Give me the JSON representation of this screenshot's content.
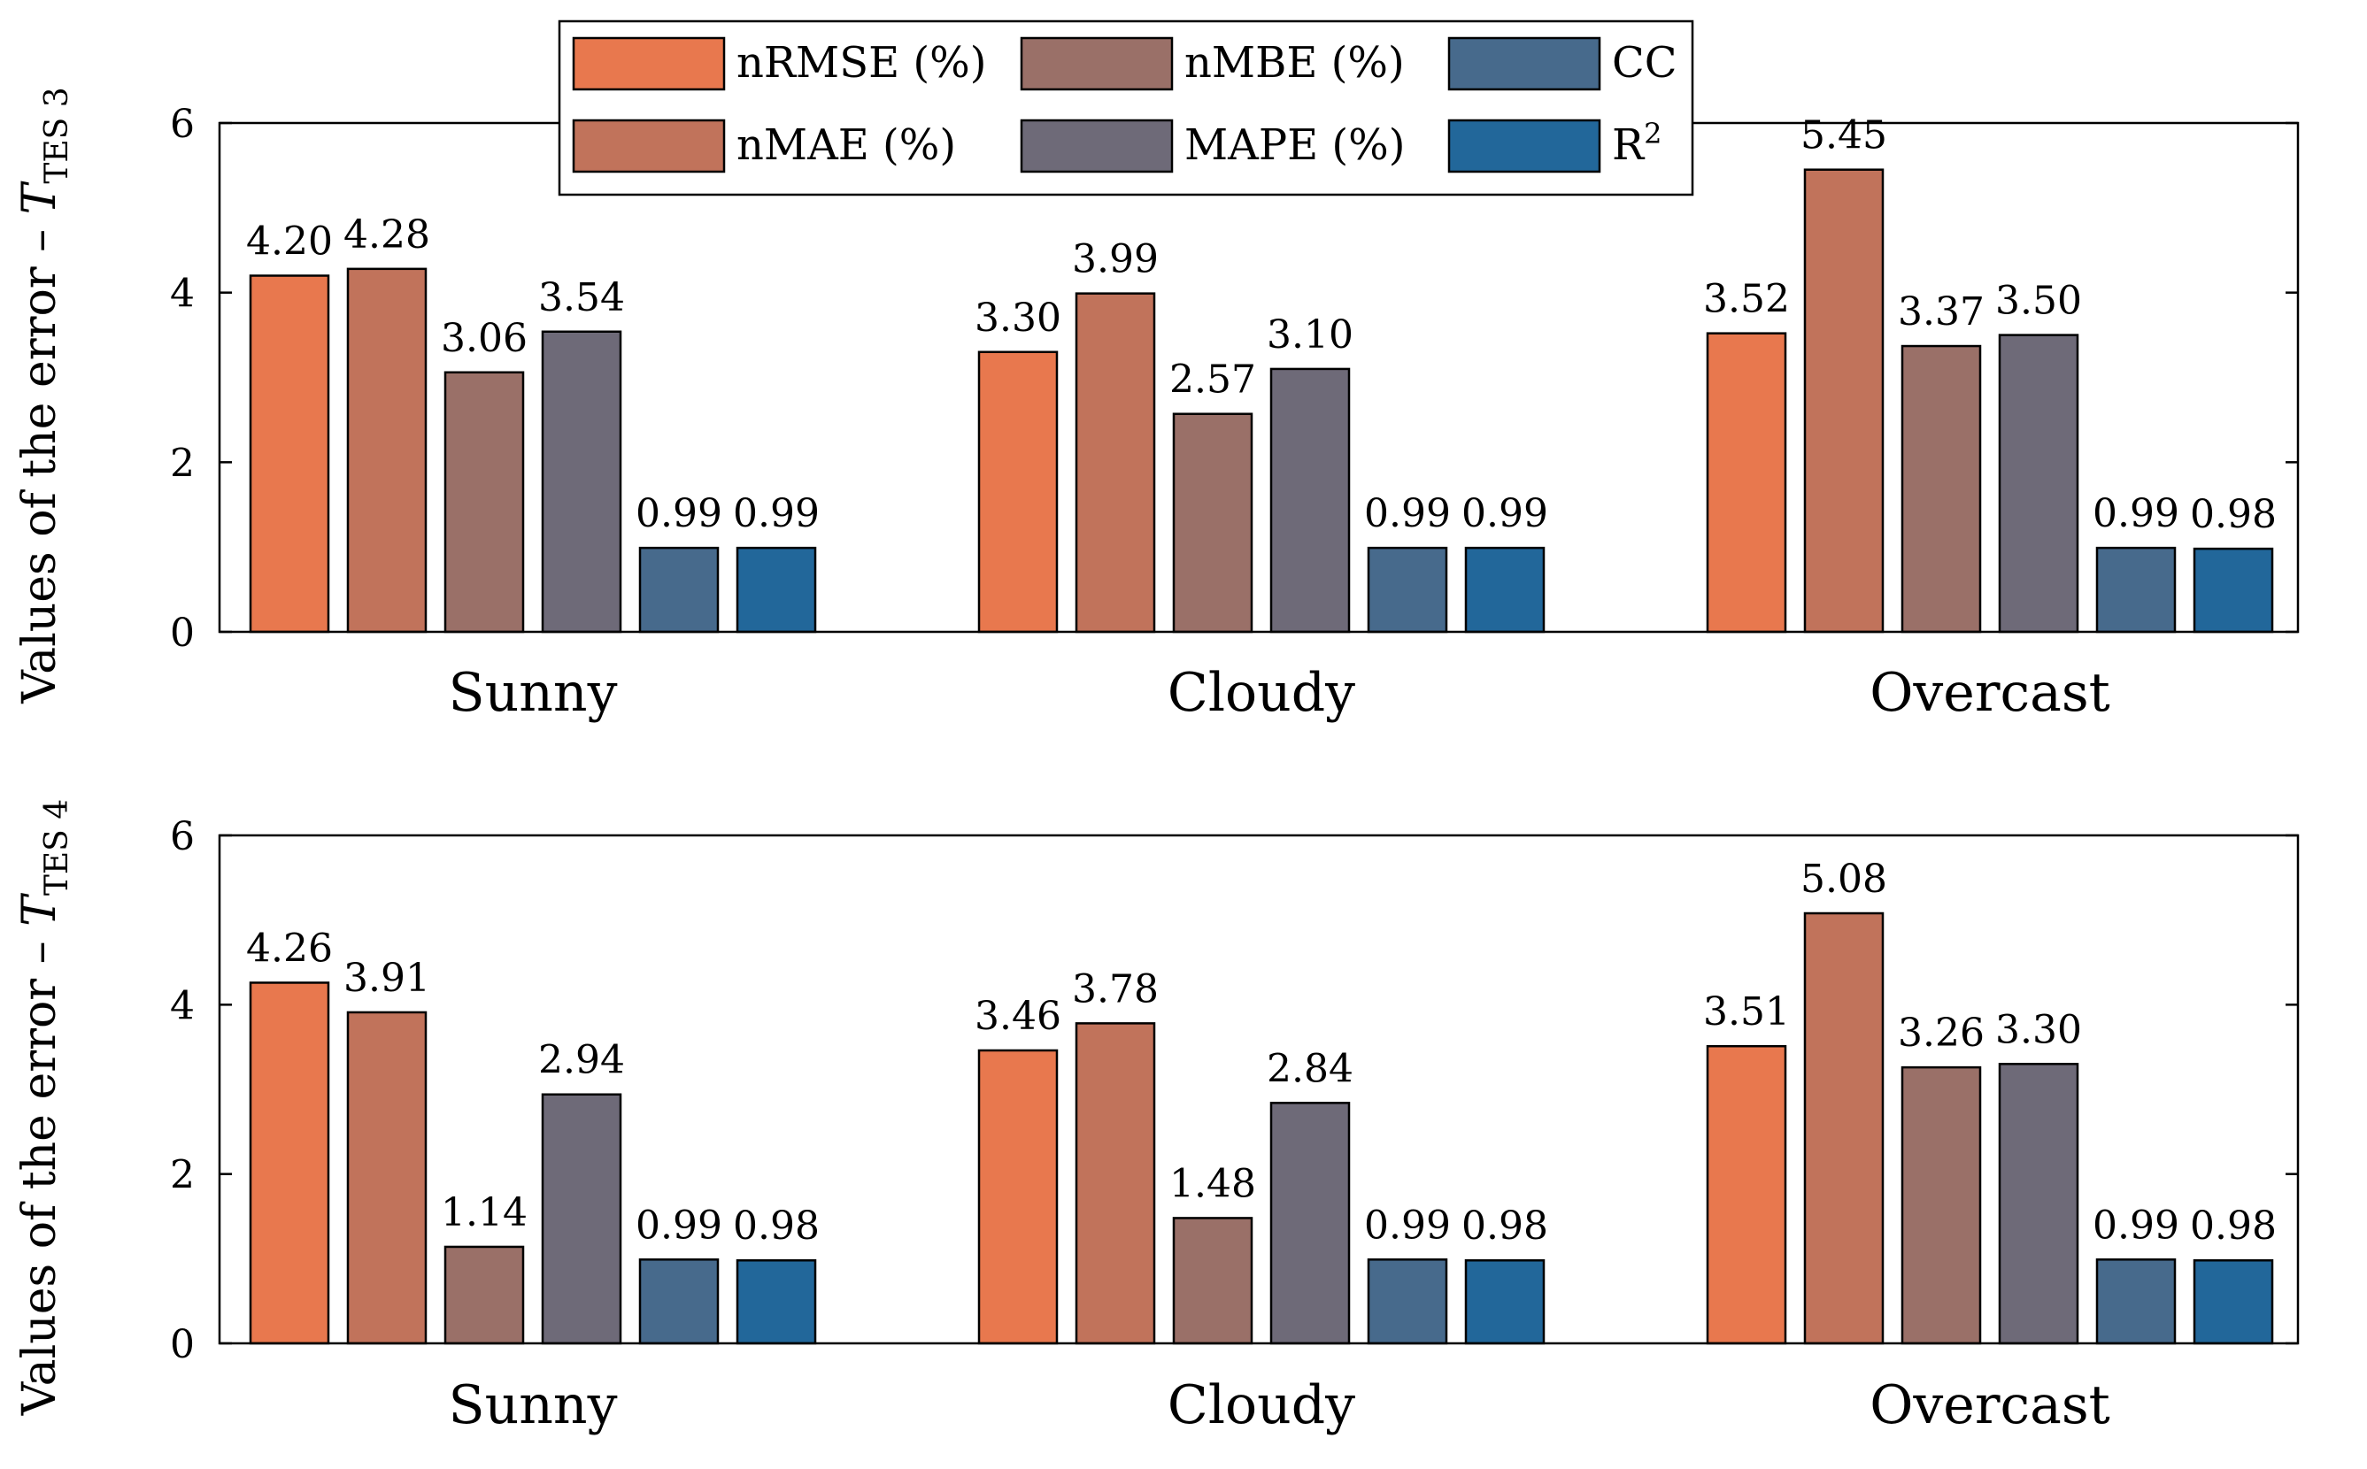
{
  "chart_data": [
    {
      "type": "bar",
      "panel": "top",
      "ylabel_prefix": "Values of the error – ",
      "ylabel_var": "T",
      "ylabel_sub": "TES 3",
      "ylim": [
        0,
        6
      ],
      "yticks": [
        0,
        2,
        4,
        6
      ],
      "categories": [
        "Sunny",
        "Cloudy",
        "Overcast"
      ],
      "series": [
        {
          "name": "nRMSE (%)",
          "values": [
            4.2,
            3.3,
            3.52
          ],
          "labels": [
            "4.20",
            "3.30",
            "3.52"
          ]
        },
        {
          "name": "nMAE (%)",
          "values": [
            4.28,
            3.99,
            5.45
          ],
          "labels": [
            "4.28",
            "3.99",
            "5.45"
          ]
        },
        {
          "name": "nMBE (%)",
          "values": [
            3.06,
            2.57,
            3.37
          ],
          "labels": [
            "3.06",
            "2.57",
            "3.37"
          ]
        },
        {
          "name": "MAPE (%)",
          "values": [
            3.54,
            3.1,
            3.5
          ],
          "labels": [
            "3.54",
            "3.10",
            "3.50"
          ]
        },
        {
          "name": "CC",
          "values": [
            0.99,
            0.99,
            0.99
          ],
          "labels": [
            "0.99",
            "0.99",
            "0.99"
          ]
        },
        {
          "name": "R2",
          "values": [
            0.99,
            0.99,
            0.98
          ],
          "labels": [
            "0.99",
            "0.99",
            "0.98"
          ]
        }
      ]
    },
    {
      "type": "bar",
      "panel": "bottom",
      "ylabel_prefix": "Values of the error – ",
      "ylabel_var": "T",
      "ylabel_sub": "TES 4",
      "ylim": [
        0,
        6
      ],
      "yticks": [
        0,
        2,
        4,
        6
      ],
      "categories": [
        "Sunny",
        "Cloudy",
        "Overcast"
      ],
      "series": [
        {
          "name": "nRMSE (%)",
          "values": [
            4.26,
            3.46,
            3.51
          ],
          "labels": [
            "4.26",
            "3.46",
            "3.51"
          ]
        },
        {
          "name": "nMAE (%)",
          "values": [
            3.91,
            3.78,
            5.08
          ],
          "labels": [
            "3.91",
            "3.78",
            "5.08"
          ]
        },
        {
          "name": "nMBE (%)",
          "values": [
            1.14,
            1.48,
            3.26
          ],
          "labels": [
            "1.14",
            "1.48",
            "3.26"
          ]
        },
        {
          "name": "MAPE (%)",
          "values": [
            2.94,
            2.84,
            3.3
          ],
          "labels": [
            "2.94",
            "2.84",
            "3.30"
          ]
        },
        {
          "name": "CC",
          "values": [
            0.99,
            0.99,
            0.99
          ],
          "labels": [
            "0.99",
            "0.99",
            "0.99"
          ]
        },
        {
          "name": "R2",
          "values": [
            0.98,
            0.98,
            0.98
          ],
          "labels": [
            "0.98",
            "0.98",
            "0.98"
          ]
        }
      ]
    }
  ],
  "legend": {
    "placement": "top-center",
    "items": [
      {
        "label": "nRMSE (%)",
        "color": "#E8784E"
      },
      {
        "label": "nMBE (%)",
        "color": "#9A7068"
      },
      {
        "label": "CC",
        "color": "#476A8C"
      },
      {
        "label": "nMAE (%)",
        "color": "#C1735B"
      },
      {
        "label": "MAPE (%)",
        "color": "#6E6A78"
      },
      {
        "label": "R",
        "sup": "2",
        "color": "#22679A"
      }
    ]
  },
  "colors": [
    "#E8784E",
    "#C1735B",
    "#9A7068",
    "#6E6A78",
    "#476A8C",
    "#22679A"
  ]
}
